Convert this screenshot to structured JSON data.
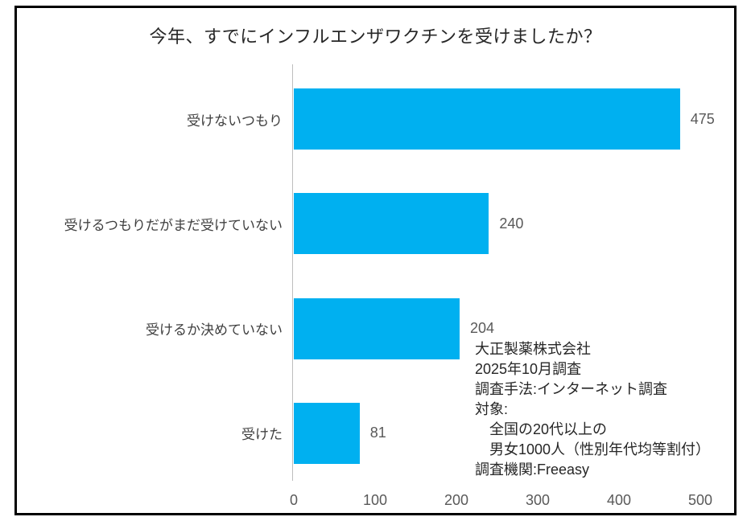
{
  "chart_data": {
    "type": "bar",
    "orientation": "horizontal",
    "title": "今年、すでにインフルエンザワクチンを受けましたか？",
    "categories": [
      "受けないつもり",
      "受けるつもりだがまだ受けていない",
      "受けるか決めていない",
      "受けた"
    ],
    "values": [
      475,
      240,
      204,
      81
    ],
    "xlabel": "",
    "ylabel": "",
    "xlim": [
      0,
      500
    ],
    "x_ticks": [
      0,
      100,
      200,
      300,
      400,
      500
    ],
    "grid": false,
    "legend": "none",
    "bar_color": "#00b0f0",
    "value_labels_shown": true
  },
  "annotation": {
    "lines": [
      "大正製薬株式会社",
      "2025年10月調査",
      "調査手法:インターネット調査",
      "対象:",
      "　全国の20代以上の",
      "　男女1000人（性別年代均等割付）",
      "調査機関:Freeasy"
    ]
  }
}
